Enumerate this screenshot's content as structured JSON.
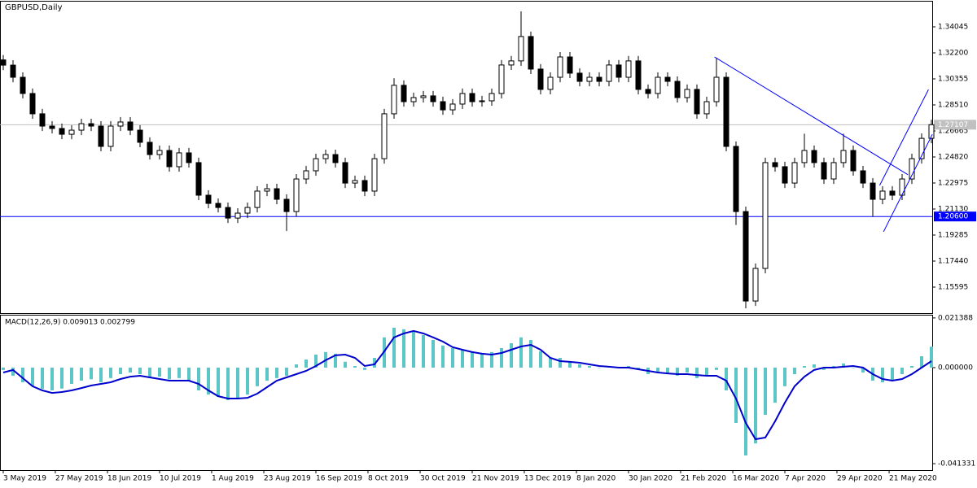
{
  "chart_data": [
    {
      "type": "candlestick",
      "title": "GBPUSD,Daily",
      "open": [
        1.317,
        1.3133,
        1.3047,
        1.2932,
        1.2788,
        1.2701,
        1.2684,
        1.2643,
        1.2672,
        1.2718,
        1.2701,
        1.2557,
        1.2701,
        1.273,
        1.2672,
        1.2586,
        1.2499,
        1.2528,
        1.2413,
        1.2511,
        1.2442,
        1.2211,
        1.2153,
        1.2124,
        1.2049,
        1.2084,
        1.2124,
        1.224,
        1.2257,
        1.2182,
        1.2095,
        1.2326,
        1.2384,
        1.247,
        1.2499,
        1.2442,
        1.2297,
        1.2315,
        1.224,
        1.247,
        1.2788,
        1.299,
        1.2874,
        1.2903,
        1.2915,
        1.2874,
        1.2816,
        1.2857,
        1.2932,
        1.2874,
        1.288,
        1.2932,
        1.3134,
        1.3163,
        1.3336,
        1.3105,
        1.2961,
        1.3047,
        1.3191,
        1.3076,
        1.3018,
        1.3047,
        1.3018,
        1.3134,
        1.3047,
        1.3163,
        1.2961,
        1.2932,
        1.3047,
        1.3018,
        1.2903,
        1.2961,
        1.2788,
        1.2874,
        1.3047,
        1.2557,
        1.2095,
        1.1461,
        1.1692,
        1.2442,
        1.2413,
        1.2297,
        1.2442,
        1.2528,
        1.2442,
        1.2326,
        1.2442,
        1.2528,
        1.2384,
        1.2297,
        1.2182,
        1.224,
        1.2211,
        1.2326,
        1.247,
        1.2614
      ],
      "high": [
        1.3205,
        1.3168,
        1.3082,
        1.2967,
        1.2823,
        1.2736,
        1.2719,
        1.2707,
        1.2753,
        1.2753,
        1.2736,
        1.2736,
        1.2765,
        1.2765,
        1.2707,
        1.2621,
        1.2563,
        1.2563,
        1.2546,
        1.2546,
        1.2477,
        1.2246,
        1.2188,
        1.2159,
        1.2119,
        1.2159,
        1.2275,
        1.2292,
        1.2292,
        1.2217,
        1.2361,
        1.2419,
        1.2505,
        1.2534,
        1.2534,
        1.2477,
        1.235,
        1.235,
        1.2505,
        1.2823,
        1.304,
        1.3025,
        1.2938,
        1.295,
        1.295,
        1.2909,
        1.2892,
        1.2967,
        1.2967,
        1.2915,
        1.2967,
        1.3169,
        1.3198,
        1.3514,
        1.3371,
        1.314,
        1.3082,
        1.3226,
        1.3226,
        1.3111,
        1.3082,
        1.3082,
        1.3169,
        1.3169,
        1.3198,
        1.3198,
        1.2996,
        1.3082,
        1.3082,
        1.3053,
        1.2996,
        1.2996,
        1.2909,
        1.3185,
        1.3082,
        1.2592,
        1.213,
        1.1727,
        1.2477,
        1.2477,
        1.2448,
        1.2477,
        1.2647,
        1.2563,
        1.2477,
        1.2477,
        1.2647,
        1.2563,
        1.2419,
        1.2332,
        1.2275,
        1.2275,
        1.2361,
        1.2505,
        1.2649,
        1.2746
      ],
      "low": [
        1.3098,
        1.3012,
        1.2897,
        1.2753,
        1.2666,
        1.2649,
        1.2608,
        1.2608,
        1.2637,
        1.2666,
        1.2522,
        1.2522,
        1.2666,
        1.2637,
        1.2551,
        1.2464,
        1.2464,
        1.2378,
        1.2378,
        1.2407,
        1.2176,
        1.2118,
        1.2089,
        1.2014,
        1.2014,
        1.2049,
        1.2089,
        1.2205,
        1.2147,
        1.1957,
        1.206,
        1.2291,
        1.2349,
        1.2435,
        1.2407,
        1.2262,
        1.2262,
        1.2205,
        1.2205,
        1.2435,
        1.2753,
        1.2839,
        1.2839,
        1.2868,
        1.2839,
        1.2781,
        1.2781,
        1.2822,
        1.2839,
        1.2839,
        1.2845,
        1.2897,
        1.3099,
        1.3128,
        1.307,
        1.2926,
        1.2926,
        1.3012,
        1.3041,
        1.2983,
        1.2983,
        1.2983,
        1.2983,
        1.3012,
        1.3012,
        1.2926,
        1.2897,
        1.2897,
        1.2983,
        1.2868,
        1.2868,
        1.2753,
        1.2753,
        1.2839,
        1.2522,
        1.2,
        1.1409,
        1.1426,
        1.1657,
        1.2378,
        1.2262,
        1.2262,
        1.2407,
        1.2407,
        1.2291,
        1.2291,
        1.2407,
        1.2349,
        1.2262,
        1.206,
        1.2147,
        1.2176,
        1.2176,
        1.2291,
        1.2435,
        1.2579
      ],
      "close": [
        1.3133,
        1.3047,
        1.2932,
        1.2788,
        1.2701,
        1.2684,
        1.2643,
        1.2672,
        1.2718,
        1.2701,
        1.2557,
        1.2701,
        1.273,
        1.2672,
        1.2586,
        1.2499,
        1.2528,
        1.2413,
        1.2511,
        1.2442,
        1.2211,
        1.2153,
        1.2124,
        1.2049,
        1.2084,
        1.2124,
        1.224,
        1.2257,
        1.2182,
        1.2095,
        1.2326,
        1.2384,
        1.247,
        1.2499,
        1.2442,
        1.2297,
        1.2315,
        1.224,
        1.247,
        1.2788,
        1.299,
        1.2874,
        1.2903,
        1.2915,
        1.2874,
        1.2816,
        1.2857,
        1.2932,
        1.2874,
        1.288,
        1.2932,
        1.3134,
        1.3163,
        1.3336,
        1.3105,
        1.2961,
        1.3047,
        1.3191,
        1.3076,
        1.3018,
        1.3047,
        1.3018,
        1.3134,
        1.3047,
        1.3163,
        1.2961,
        1.2932,
        1.3047,
        1.3018,
        1.2903,
        1.2961,
        1.2788,
        1.2874,
        1.3047,
        1.2557,
        1.2095,
        1.1461,
        1.1692,
        1.2442,
        1.2413,
        1.2297,
        1.2442,
        1.2528,
        1.2442,
        1.2326,
        1.2442,
        1.2528,
        1.2384,
        1.2297,
        1.2182,
        1.224,
        1.2211,
        1.2326,
        1.247,
        1.2614,
        1.2711
      ],
      "xlim": [
        -0.333,
        95.083
      ],
      "ylim": [
        1.1375,
        1.35832
      ],
      "yticks": [
        {
          "value": 1.34045,
          "label": "1.34045"
        },
        {
          "value": 1.322,
          "label": "1.32200"
        },
        {
          "value": 1.30355,
          "label": "1.30355"
        },
        {
          "value": 1.2851,
          "label": "1.28510"
        },
        {
          "value": 1.26665,
          "label": "1.26665"
        },
        {
          "value": 1.2482,
          "label": "1.24820"
        },
        {
          "value": 1.22975,
          "label": "1.22975"
        },
        {
          "value": 1.2113,
          "label": "1.21130"
        },
        {
          "value": 1.19285,
          "label": "1.19285"
        },
        {
          "value": 1.1744,
          "label": "1.17440"
        },
        {
          "value": 1.15595,
          "label": "1.15595"
        }
      ],
      "xticks": [
        {
          "value": 0,
          "label": "3 May 2019"
        },
        {
          "value": 5.33,
          "label": "27 May 2019"
        },
        {
          "value": 10.67,
          "label": "18 Jun 2019"
        },
        {
          "value": 16,
          "label": "10 Jul 2019"
        },
        {
          "value": 21.33,
          "label": "1 Aug 2019"
        },
        {
          "value": 26.67,
          "label": "23 Aug 2019"
        },
        {
          "value": 32,
          "label": "16 Sep 2019"
        },
        {
          "value": 37.33,
          "label": "8 Oct 2019"
        },
        {
          "value": 42.67,
          "label": "30 Oct 2019"
        },
        {
          "value": 48,
          "label": "21 Nov 2019"
        },
        {
          "value": 53.33,
          "label": "13 Dec 2019"
        },
        {
          "value": 58.67,
          "label": "8 Jan 2020"
        },
        {
          "value": 64,
          "label": "30 Jan 2020"
        },
        {
          "value": 69.33,
          "label": "21 Feb 2020"
        },
        {
          "value": 74.67,
          "label": "16 Mar 2020"
        },
        {
          "value": 80,
          "label": "7 Apr 2020"
        },
        {
          "value": 85.33,
          "label": "29 Apr 2020"
        },
        {
          "value": 90.67,
          "label": "21 May 2020"
        }
      ],
      "hlines": [
        {
          "value": 1.206,
          "label": "1.20600",
          "color": "#0000ff"
        },
        {
          "value": 1.27107,
          "label": "1.27107",
          "color": "#c0c0c0"
        }
      ],
      "trendlines": [
        {
          "x": [
            72.8,
            92.6
          ],
          "y": [
            1.3191,
            1.2356
          ],
          "color": "#0000ff"
        },
        {
          "x": [
            89.7,
            94.7
          ],
          "y": [
            1.228,
            1.296
          ],
          "color": "#0000ff"
        },
        {
          "x": [
            90.1,
            95.1
          ],
          "y": [
            1.1952,
            1.2643
          ],
          "color": "#0000ff"
        }
      ]
    },
    {
      "type": "macd",
      "title": "MACD(12,26,9) 0.009013 0.002799",
      "xlim": [
        -0.333,
        95.083
      ],
      "ylim": [
        -0.0441,
        0.0224
      ],
      "yticks": [
        {
          "value": 0.021388,
          "label": "0.021388"
        },
        {
          "value": 0,
          "label": "0.000000"
        },
        {
          "value": -0.041331,
          "label": "-0.041331"
        }
      ],
      "histogram": {
        "color": "#5cc6c6",
        "values": [
          -0.001,
          -0.0035,
          -0.0063,
          -0.008,
          -0.0091,
          -0.0098,
          -0.009,
          -0.007,
          -0.0056,
          -0.005,
          -0.0063,
          -0.0045,
          -0.0028,
          -0.0021,
          -0.0028,
          -0.0045,
          -0.0039,
          -0.005,
          -0.0045,
          -0.0056,
          -0.0098,
          -0.0116,
          -0.0126,
          -0.014,
          -0.0133,
          -0.0116,
          -0.008,
          -0.0056,
          -0.0045,
          -0.0035,
          0.0014,
          0.0035,
          0.0056,
          0.0067,
          0.006,
          0.0025,
          0.0007,
          -0.001,
          0.0042,
          0.013,
          0.0172,
          0.0165,
          0.0154,
          0.014,
          0.0119,
          0.0095,
          0.0084,
          0.0077,
          0.007,
          0.006,
          0.0067,
          0.0084,
          0.0105,
          0.013,
          0.0119,
          0.007,
          0.0042,
          0.0042,
          0.0025,
          0.0014,
          0.0007,
          0,
          0.0007,
          0,
          0.0007,
          -0.001,
          -0.0028,
          -0.0021,
          -0.0028,
          -0.0035,
          -0.0021,
          -0.0045,
          -0.0035,
          -0.001,
          -0.0098,
          -0.0238,
          -0.0378,
          -0.0326,
          -0.0203,
          -0.0151,
          -0.008,
          -0.0028,
          0.0007,
          0.0014,
          -0.001,
          0.0007,
          0.0018,
          0,
          -0.0021,
          -0.0056,
          -0.0063,
          -0.0056,
          -0.0028,
          0.0007,
          0.0049,
          0.009
        ]
      },
      "signal": {
        "color": "#0000cd",
        "values": [
          -0.0021,
          -0.001,
          -0.0045,
          -0.008,
          -0.0098,
          -0.0109,
          -0.0105,
          -0.0098,
          -0.0088,
          -0.0077,
          -0.007,
          -0.0063,
          -0.0049,
          -0.0039,
          -0.0035,
          -0.0042,
          -0.0049,
          -0.0056,
          -0.0056,
          -0.0056,
          -0.007,
          -0.0098,
          -0.0123,
          -0.0133,
          -0.0133,
          -0.013,
          -0.0112,
          -0.0084,
          -0.0056,
          -0.0042,
          -0.0028,
          -0.0014,
          0.0007,
          0.0032,
          0.0053,
          0.0056,
          0.0042,
          0.0007,
          0.0014,
          0.007,
          0.013,
          0.0147,
          0.0158,
          0.0147,
          0.013,
          0.0112,
          0.0088,
          0.0077,
          0.0067,
          0.006,
          0.0056,
          0.0063,
          0.0077,
          0.0091,
          0.0098,
          0.0077,
          0.0042,
          0.0028,
          0.0025,
          0.0021,
          0.0014,
          0.0007,
          0.0004,
          0,
          0,
          -0.0007,
          -0.0014,
          -0.0021,
          -0.0025,
          -0.0028,
          -0.0028,
          -0.0032,
          -0.0035,
          -0.0035,
          -0.0056,
          -0.0133,
          -0.0238,
          -0.0308,
          -0.0301,
          -0.0231,
          -0.0151,
          -0.008,
          -0.0039,
          -0.001,
          0,
          0,
          0.0004,
          0.0007,
          0,
          -0.0028,
          -0.0049,
          -0.0056,
          -0.0049,
          -0.0028,
          0,
          0.0028
        ]
      }
    }
  ]
}
